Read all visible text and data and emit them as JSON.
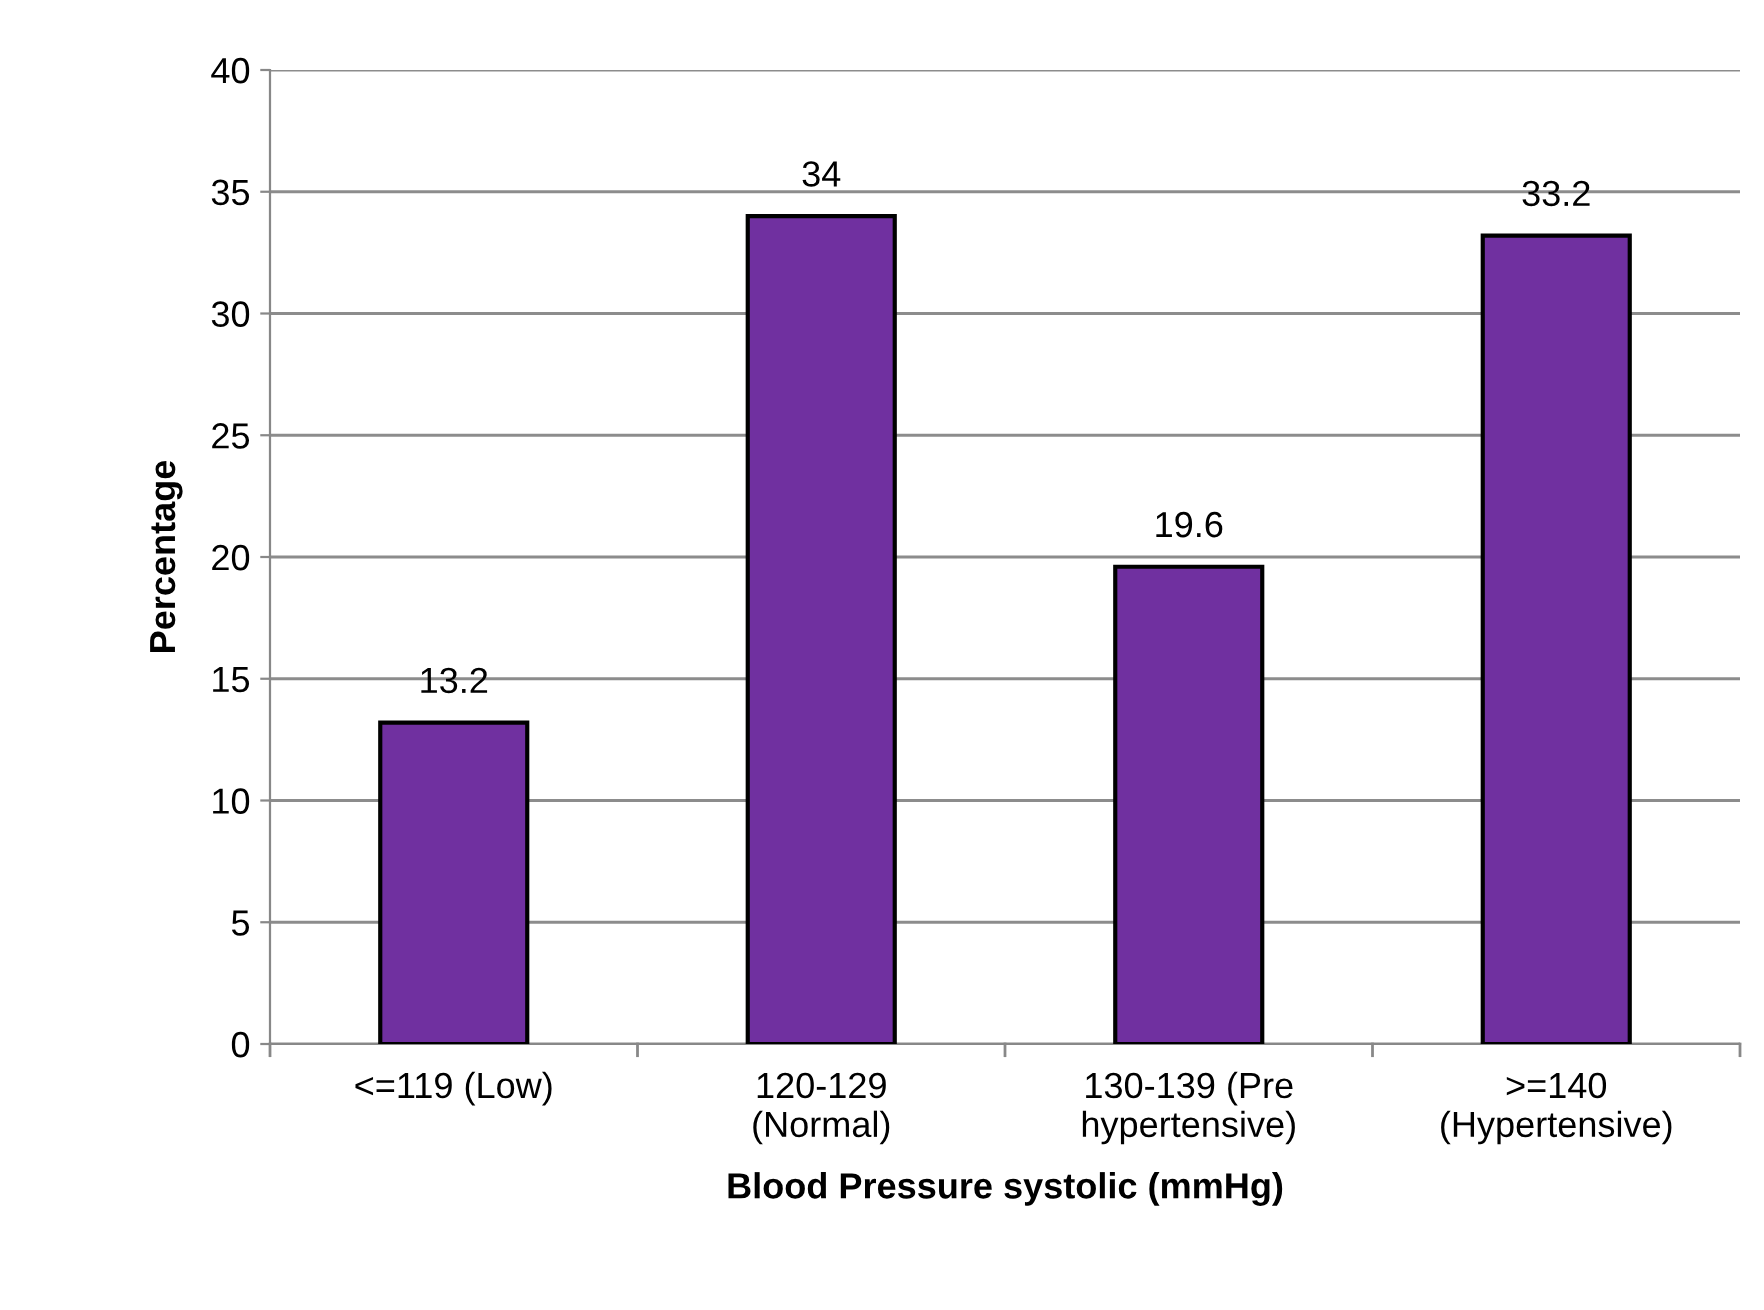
{
  "chart_data": {
    "type": "bar",
    "xlabel": "Blood Pressure systolic (mmHg)",
    "ylabel": "Percentage",
    "categories": [
      "<=119 (Low)",
      "120-129\n(Normal)",
      "130-139 (Pre\nhypertensive)",
      ">=140\n(Hypertensive)"
    ],
    "values": [
      13.2,
      34,
      19.6,
      33.2
    ],
    "color": "#7030a0",
    "ylim": [
      0,
      40
    ],
    "yticks": [
      0,
      5,
      10,
      15,
      20,
      25,
      30,
      35,
      40
    ],
    "grid": "y",
    "data_labels": true,
    "legend": false
  }
}
